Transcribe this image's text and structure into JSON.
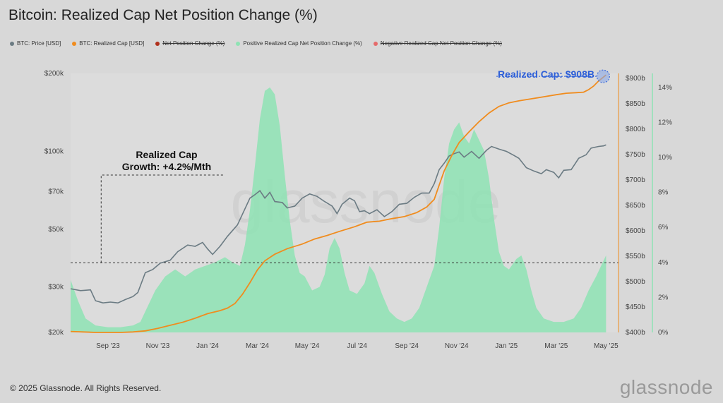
{
  "title": "Bitcoin: Realized Cap Net Position Change (%)",
  "legend": [
    {
      "label": "BTC: Price [USD]",
      "color": "#6b7b83",
      "struck": false
    },
    {
      "label": "BTC: Realized Cap [USD]",
      "color": "#f08c1e",
      "struck": false
    },
    {
      "label": "Net Position Change (%)",
      "color": "#b0301c",
      "struck": true
    },
    {
      "label": "Positive Realized Cap Net Position Change (%)",
      "color": "#8ee3b4",
      "struck": false
    },
    {
      "label": "Negative Realized Cap Net Position Change (%)",
      "color": "#e56b6b",
      "struck": true
    }
  ],
  "footer": "© 2025 Glassnode. All Rights Reserved.",
  "brand": "glassnode",
  "watermark": "glassnode",
  "chart_data": {
    "type": "line",
    "title": "Bitcoin: Realized Cap Net Position Change (%)",
    "x_ticks": [
      "Sep '23",
      "Nov '23",
      "Jan '24",
      "Mar '24",
      "May '24",
      "Jul '24",
      "Sep '24",
      "Nov '24",
      "Jan '25",
      "Mar '25",
      "May '25"
    ],
    "y_left": {
      "ticks": [
        "$20k",
        "$30k",
        "$50k",
        "$70k",
        "$100k",
        "$200k"
      ],
      "values": [
        20000,
        30000,
        50000,
        70000,
        100000,
        200000
      ],
      "scale": "log",
      "range": [
        20000,
        200000
      ]
    },
    "y_right_cap": {
      "ticks": [
        "$400b",
        "$450b",
        "$500b",
        "$550b",
        "$600b",
        "$650b",
        "$700b",
        "$750b",
        "$800b",
        "$850b",
        "$900b"
      ],
      "values": [
        400,
        450,
        500,
        550,
        600,
        650,
        700,
        750,
        800,
        850,
        900
      ],
      "range": [
        400,
        910
      ]
    },
    "y_right_pct": {
      "ticks": [
        "0%",
        "2%",
        "4%",
        "6%",
        "8%",
        "10%",
        "12%",
        "14%"
      ],
      "values": [
        0,
        2,
        4,
        6,
        8,
        10,
        12,
        14
      ],
      "range": [
        0,
        14.8
      ]
    },
    "x_range_months": [
      0,
      22
    ],
    "x_tick_months": [
      1.5,
      3.5,
      5.5,
      7.5,
      9.5,
      11.5,
      13.5,
      15.5,
      17.5,
      19.5,
      21.5
    ],
    "series": [
      {
        "name": "BTC: Price [USD]",
        "color": "#6b7b83",
        "axis": "price",
        "points": [
          [
            0.0,
            29500
          ],
          [
            0.4,
            29000
          ],
          [
            0.8,
            29200
          ],
          [
            1.0,
            26500
          ],
          [
            1.3,
            26000
          ],
          [
            1.6,
            26200
          ],
          [
            1.9,
            26000
          ],
          [
            2.2,
            26800
          ],
          [
            2.5,
            27500
          ],
          [
            2.7,
            28500
          ],
          [
            3.0,
            34000
          ],
          [
            3.3,
            35000
          ],
          [
            3.6,
            37000
          ],
          [
            4.0,
            38000
          ],
          [
            4.3,
            41000
          ],
          [
            4.7,
            43500
          ],
          [
            5.0,
            43000
          ],
          [
            5.3,
            44500
          ],
          [
            5.5,
            42000
          ],
          [
            5.7,
            40000
          ],
          [
            6.0,
            43000
          ],
          [
            6.3,
            47000
          ],
          [
            6.7,
            52000
          ],
          [
            7.0,
            60000
          ],
          [
            7.2,
            66000
          ],
          [
            7.4,
            68000
          ],
          [
            7.6,
            70500
          ],
          [
            7.8,
            66000
          ],
          [
            8.0,
            69500
          ],
          [
            8.2,
            64000
          ],
          [
            8.5,
            63500
          ],
          [
            8.7,
            60500
          ],
          [
            9.0,
            61500
          ],
          [
            9.3,
            66000
          ],
          [
            9.6,
            68500
          ],
          [
            9.9,
            67000
          ],
          [
            10.2,
            64000
          ],
          [
            10.5,
            61500
          ],
          [
            10.7,
            57500
          ],
          [
            10.9,
            62500
          ],
          [
            11.2,
            66000
          ],
          [
            11.4,
            64500
          ],
          [
            11.6,
            58500
          ],
          [
            11.8,
            59000
          ],
          [
            12.0,
            57500
          ],
          [
            12.3,
            59500
          ],
          [
            12.6,
            56000
          ],
          [
            12.9,
            58500
          ],
          [
            13.2,
            62500
          ],
          [
            13.5,
            63000
          ],
          [
            13.8,
            66500
          ],
          [
            14.1,
            69000
          ],
          [
            14.4,
            69000
          ],
          [
            14.6,
            75000
          ],
          [
            14.8,
            85000
          ],
          [
            15.0,
            90000
          ],
          [
            15.2,
            96000
          ],
          [
            15.4,
            98000
          ],
          [
            15.6,
            99500
          ],
          [
            15.8,
            95000
          ],
          [
            16.1,
            100000
          ],
          [
            16.4,
            94000
          ],
          [
            16.7,
            101000
          ],
          [
            16.9,
            104500
          ],
          [
            17.2,
            102000
          ],
          [
            17.5,
            100000
          ],
          [
            17.8,
            96500
          ],
          [
            18.0,
            94000
          ],
          [
            18.3,
            86500
          ],
          [
            18.6,
            84000
          ],
          [
            18.9,
            82000
          ],
          [
            19.1,
            85000
          ],
          [
            19.4,
            83000
          ],
          [
            19.6,
            79000
          ],
          [
            19.8,
            84500
          ],
          [
            20.1,
            85000
          ],
          [
            20.4,
            94000
          ],
          [
            20.7,
            97000
          ],
          [
            20.9,
            103000
          ],
          [
            21.2,
            104500
          ],
          [
            21.4,
            105000
          ],
          [
            21.5,
            106000
          ]
        ]
      },
      {
        "name": "BTC: Realized Cap [USD]",
        "color": "#f08c1e",
        "axis": "cap",
        "points": [
          [
            0.0,
            402
          ],
          [
            0.5,
            401
          ],
          [
            1.0,
            400
          ],
          [
            1.5,
            400
          ],
          [
            2.0,
            400
          ],
          [
            2.5,
            401
          ],
          [
            3.0,
            403
          ],
          [
            3.5,
            408
          ],
          [
            4.0,
            414
          ],
          [
            4.5,
            420
          ],
          [
            5.0,
            428
          ],
          [
            5.5,
            437
          ],
          [
            6.0,
            443
          ],
          [
            6.3,
            448
          ],
          [
            6.6,
            457
          ],
          [
            6.9,
            475
          ],
          [
            7.2,
            498
          ],
          [
            7.5,
            523
          ],
          [
            7.8,
            541
          ],
          [
            8.2,
            554
          ],
          [
            8.7,
            565
          ],
          [
            9.3,
            574
          ],
          [
            9.8,
            584
          ],
          [
            10.3,
            591
          ],
          [
            10.8,
            599
          ],
          [
            11.4,
            608
          ],
          [
            11.9,
            617
          ],
          [
            12.4,
            619
          ],
          [
            12.9,
            624
          ],
          [
            13.4,
            628
          ],
          [
            13.9,
            636
          ],
          [
            14.3,
            647
          ],
          [
            14.6,
            662
          ],
          [
            14.8,
            690
          ],
          [
            15.0,
            718
          ],
          [
            15.3,
            748
          ],
          [
            15.6,
            774
          ],
          [
            16.0,
            795
          ],
          [
            16.4,
            815
          ],
          [
            16.8,
            832
          ],
          [
            17.2,
            845
          ],
          [
            17.6,
            852
          ],
          [
            18.0,
            856
          ],
          [
            18.5,
            860
          ],
          [
            19.0,
            864
          ],
          [
            19.5,
            868
          ],
          [
            19.9,
            871
          ],
          [
            20.3,
            872
          ],
          [
            20.6,
            873
          ],
          [
            20.8,
            878
          ],
          [
            21.0,
            885
          ],
          [
            21.2,
            895
          ],
          [
            21.5,
            907
          ]
        ]
      },
      {
        "name": "Positive Realized Cap Net Position Change (%)",
        "color": "#8ee3b4",
        "axis": "pct",
        "type": "area",
        "points": [
          [
            0.0,
            3.0
          ],
          [
            0.3,
            1.8
          ],
          [
            0.6,
            0.8
          ],
          [
            1.0,
            0.4
          ],
          [
            1.5,
            0.3
          ],
          [
            2.0,
            0.3
          ],
          [
            2.5,
            0.4
          ],
          [
            2.8,
            0.6
          ],
          [
            3.0,
            1.2
          ],
          [
            3.4,
            2.4
          ],
          [
            3.8,
            3.2
          ],
          [
            4.2,
            3.6
          ],
          [
            4.6,
            3.2
          ],
          [
            5.0,
            3.6
          ],
          [
            5.4,
            3.8
          ],
          [
            5.8,
            4.0
          ],
          [
            6.2,
            4.3
          ],
          [
            6.5,
            4.0
          ],
          [
            6.8,
            3.8
          ],
          [
            7.0,
            5.0
          ],
          [
            7.2,
            7.0
          ],
          [
            7.4,
            9.5
          ],
          [
            7.6,
            12.2
          ],
          [
            7.8,
            13.8
          ],
          [
            8.0,
            14.0
          ],
          [
            8.2,
            13.6
          ],
          [
            8.4,
            11.8
          ],
          [
            8.6,
            9.0
          ],
          [
            8.8,
            6.4
          ],
          [
            9.0,
            4.4
          ],
          [
            9.2,
            3.4
          ],
          [
            9.4,
            3.2
          ],
          [
            9.7,
            2.4
          ],
          [
            10.0,
            2.6
          ],
          [
            10.2,
            3.3
          ],
          [
            10.4,
            4.8
          ],
          [
            10.6,
            5.4
          ],
          [
            10.8,
            4.8
          ],
          [
            11.0,
            3.4
          ],
          [
            11.2,
            2.4
          ],
          [
            11.5,
            2.2
          ],
          [
            11.8,
            2.8
          ],
          [
            12.0,
            3.8
          ],
          [
            12.2,
            3.4
          ],
          [
            12.5,
            2.2
          ],
          [
            12.8,
            1.2
          ],
          [
            13.1,
            0.8
          ],
          [
            13.4,
            0.6
          ],
          [
            13.7,
            0.8
          ],
          [
            14.0,
            1.4
          ],
          [
            14.3,
            2.6
          ],
          [
            14.6,
            3.8
          ],
          [
            14.8,
            6.0
          ],
          [
            15.0,
            8.8
          ],
          [
            15.2,
            10.8
          ],
          [
            15.4,
            11.6
          ],
          [
            15.6,
            12.0
          ],
          [
            15.8,
            11.2
          ],
          [
            16.0,
            10.8
          ],
          [
            16.2,
            11.6
          ],
          [
            16.4,
            11.0
          ],
          [
            16.6,
            10.4
          ],
          [
            16.8,
            8.8
          ],
          [
            17.0,
            6.5
          ],
          [
            17.2,
            4.6
          ],
          [
            17.4,
            3.8
          ],
          [
            17.6,
            3.6
          ],
          [
            17.9,
            4.2
          ],
          [
            18.1,
            4.4
          ],
          [
            18.3,
            3.6
          ],
          [
            18.5,
            2.4
          ],
          [
            18.7,
            1.4
          ],
          [
            19.0,
            0.8
          ],
          [
            19.4,
            0.6
          ],
          [
            19.8,
            0.6
          ],
          [
            20.2,
            0.8
          ],
          [
            20.5,
            1.4
          ],
          [
            20.8,
            2.4
          ],
          [
            21.1,
            3.2
          ],
          [
            21.3,
            3.8
          ],
          [
            21.5,
            4.4
          ]
        ]
      }
    ],
    "annotations": [
      {
        "text_lines": [
          "Realized Cap",
          "Growth: +4.2%/Mth"
        ],
        "kind": "label"
      },
      {
        "text": "Realized Cap: $908B",
        "kind": "callout",
        "color": "#2d5fd8"
      }
    ],
    "reference_line_cap": 537,
    "bracket_start_month": 1.0
  }
}
